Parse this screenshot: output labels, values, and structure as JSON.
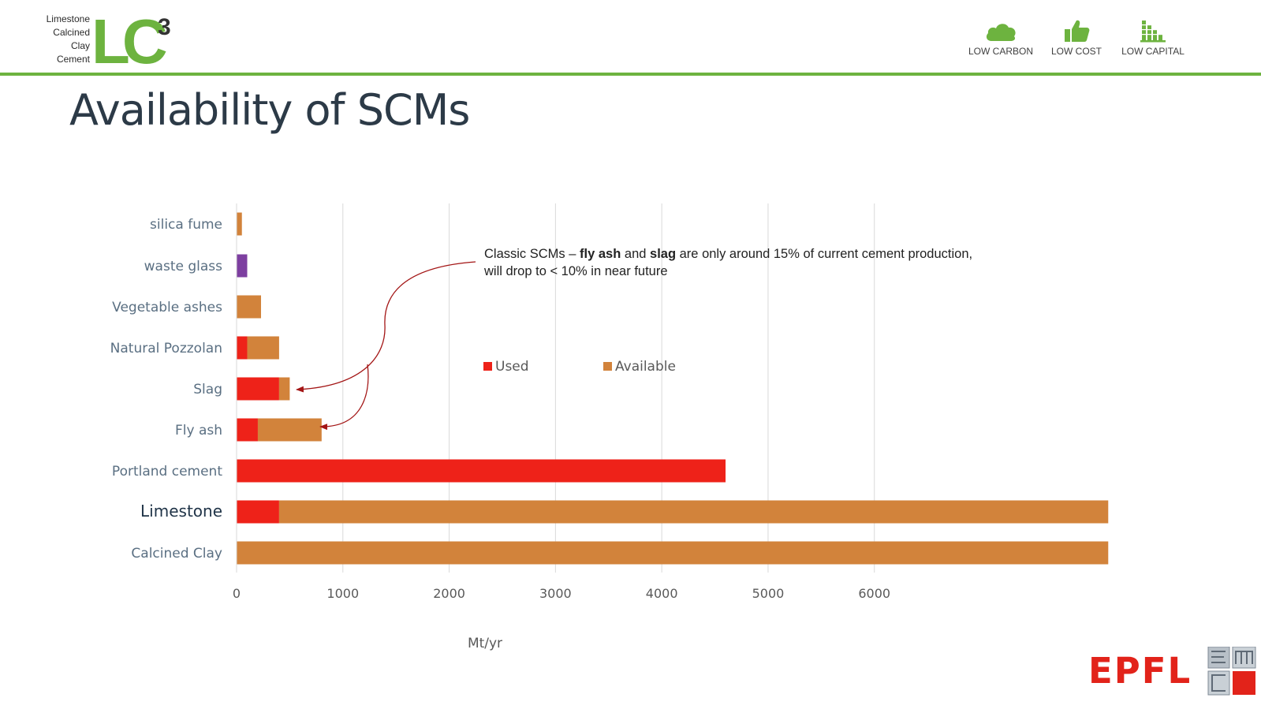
{
  "header": {
    "logo_lines": [
      "Limestone",
      "Calcined",
      "Clay",
      "Cement"
    ],
    "logo_mark": "LC",
    "logo_sup": "3",
    "badges": [
      {
        "label": "LOW CARBON",
        "icon": "cloud-icon"
      },
      {
        "label": "LOW COST",
        "icon": "thumbs-up-icon"
      },
      {
        "label": "LOW CAPITAL",
        "icon": "bar-stack-icon"
      }
    ],
    "accent_color": "#6db33f"
  },
  "slide": {
    "title": "Availability of SCMs"
  },
  "chart_data": {
    "type": "bar",
    "orientation": "horizontal",
    "stacked": true,
    "categories": [
      "silica fume",
      "waste glass",
      "Vegetable ashes",
      "Natural Pozzolan",
      "Slag",
      "Fly ash",
      "Portland cement",
      "Limestone",
      "Calcined Clay"
    ],
    "series": [
      {
        "name": "Used",
        "color": "#ee2219",
        "values": [
          0,
          0,
          0,
          100,
          400,
          200,
          4600,
          400,
          0
        ]
      },
      {
        "name": "Available",
        "color": "#d2833b",
        "values": [
          50,
          0,
          230,
          300,
          100,
          600,
          0,
          7800,
          8200
        ]
      }
    ],
    "extra_fills": {
      "waste glass": {
        "color": "#7d3fa0",
        "value": 100
      }
    },
    "xlabel": "Mt/yr",
    "x_ticks": [
      0,
      1000,
      2000,
      3000,
      4000,
      5000,
      6000
    ],
    "xlim": [
      0,
      8200
    ],
    "grid": true,
    "legend_position": "middle",
    "annotation": {
      "line1_parts": [
        {
          "text": "Classic SCMs – ",
          "bold": false
        },
        {
          "text": "fly ash",
          "bold": true
        },
        {
          "text": " and ",
          "bold": false
        },
        {
          "text": "slag",
          "bold": true
        },
        {
          "text": " are only around 15% of current cement production,",
          "bold": false
        }
      ],
      "line2": "will drop to < 10% in near future",
      "arrow_color": "#a31515"
    }
  },
  "footer": {
    "brand": "EPFL",
    "brand_color": "#e2231a"
  }
}
